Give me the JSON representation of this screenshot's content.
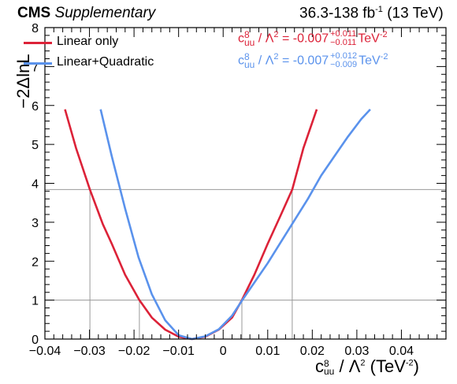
{
  "header": {
    "cms": "CMS",
    "supplementary": "Supplementary",
    "lumi_main": "36.3-138 fb",
    "lumi_sup": "-1",
    "lumi_energy": " (13 TeV)"
  },
  "legend": {
    "linear": "Linear only",
    "quadratic": "Linear+Quadratic"
  },
  "results": {
    "linear": {
      "coef": "c",
      "coef_sup": "8",
      "coef_sub": "uu",
      "middle": " / Λ",
      "lambda_sup": "2",
      "eq": " = -0.007",
      "up": "+0.011",
      "down": "−0.011",
      "unit": "TeV",
      "unit_sup": "-2"
    },
    "quadratic": {
      "coef": "c",
      "coef_sup": "8",
      "coef_sub": "uu",
      "middle": " / Λ",
      "lambda_sup": "2",
      "eq": " = -0.007",
      "up": "+0.012",
      "down": "−0.009",
      "unit": "TeV",
      "unit_sup": "-2"
    }
  },
  "axis": {
    "xlabel_c": "c",
    "xlabel_sup": "8",
    "xlabel_sub": "uu",
    "xlabel_rest": " / Λ",
    "xlabel_lsup": "2",
    "xlabel_unit": " (TeV",
    "xlabel_unit_sup": "-2",
    "xlabel_close": ")",
    "ylabel": "−2ΔlnL"
  },
  "colors": {
    "linear": "#dc2238",
    "quadratic": "#5a92ec",
    "ref_line": "#999999"
  },
  "chart_data": {
    "type": "line",
    "xlim": [
      -0.04,
      0.05
    ],
    "ylim": [
      0,
      8
    ],
    "xticks": [
      -0.04,
      -0.03,
      -0.02,
      -0.01,
      0,
      0.01,
      0.02,
      0.03,
      0.04
    ],
    "xtick_labels": [
      "−0.04",
      "−0.03",
      "−0.02",
      "−0.01",
      "0",
      "0.01",
      "0.02",
      "0.03",
      "0.04"
    ],
    "yticks": [
      0,
      1,
      2,
      3,
      4,
      5,
      6,
      7,
      8
    ],
    "ytick_labels": [
      "0",
      "1",
      "2",
      "3",
      "4",
      "5",
      "6",
      "7",
      "8"
    ],
    "reference_lines": [
      1,
      3.84
    ],
    "interval_markers": [
      -0.0299,
      -0.0188,
      0.0042,
      0.0155
    ],
    "series": [
      {
        "name": "Linear only",
        "x": [
          -0.0355,
          -0.033,
          -0.0299,
          -0.027,
          -0.025,
          -0.022,
          -0.0188,
          -0.016,
          -0.013,
          -0.01,
          -0.007,
          -0.004,
          -0.001,
          0.002,
          0.0042,
          0.007,
          0.01,
          0.013,
          0.0155,
          0.018,
          0.021
        ],
        "y": [
          5.9,
          4.9,
          3.84,
          2.95,
          2.45,
          1.65,
          1.0,
          0.55,
          0.24,
          0.06,
          0.0,
          0.06,
          0.24,
          0.55,
          1.0,
          1.65,
          2.45,
          3.2,
          3.84,
          4.9,
          5.9
        ]
      },
      {
        "name": "Linear+Quadratic",
        "x": [
          -0.0275,
          -0.025,
          -0.022,
          -0.019,
          -0.016,
          -0.013,
          -0.01,
          -0.007,
          -0.004,
          -0.001,
          0.002,
          0.0043,
          0.007,
          0.01,
          0.013,
          0.016,
          0.019,
          0.022,
          0.025,
          0.028,
          0.031,
          0.033
        ],
        "y": [
          5.9,
          4.7,
          3.35,
          2.1,
          1.15,
          0.48,
          0.1,
          0.0,
          0.07,
          0.25,
          0.6,
          1.0,
          1.45,
          1.95,
          2.5,
          3.05,
          3.6,
          4.2,
          4.7,
          5.2,
          5.65,
          5.9
        ]
      }
    ]
  }
}
